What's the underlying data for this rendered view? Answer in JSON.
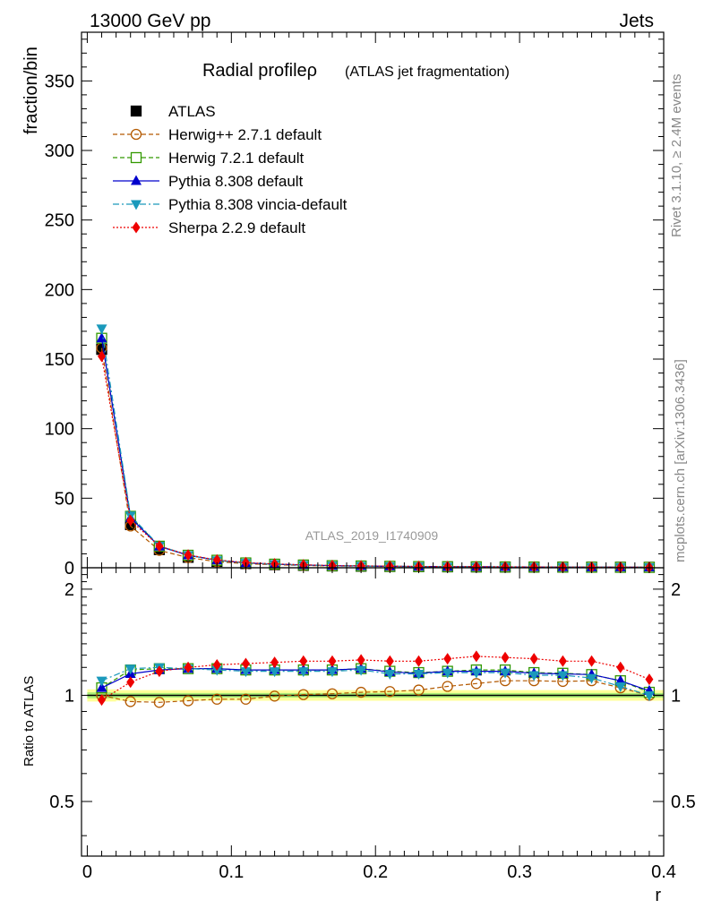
{
  "header": {
    "left": "13000 GeV pp",
    "right": "Jets"
  },
  "side_labels": {
    "top": "Rivet 3.1.10, ≥ 2.4M events",
    "bottom": "mcplots.cern.ch [arXiv:1306.3436]"
  },
  "watermark": "ATLAS_2019_I1740909",
  "chart_data": [
    {
      "panel": "main",
      "type": "line",
      "title": "Radial profileρ",
      "subtitle": "(ATLAS jet fragmentation)",
      "ylabel": "fraction/bin",
      "xlim": [
        -0.004,
        0.4
      ],
      "ylim": [
        0,
        385
      ],
      "yticks": [
        0,
        50,
        100,
        150,
        200,
        250,
        300,
        350
      ],
      "legend_position": "top-left",
      "x": [
        0.01,
        0.03,
        0.05,
        0.07,
        0.09,
        0.11,
        0.13,
        0.15,
        0.17,
        0.19,
        0.21,
        0.23,
        0.25,
        0.27,
        0.29,
        0.31,
        0.33,
        0.35,
        0.37,
        0.39
      ],
      "series": [
        {
          "name": "ATLAS",
          "color": "#000000",
          "marker": "square-filled",
          "line": "none",
          "values": [
            157,
            31,
            13,
            7.5,
            4.5,
            3.0,
            2.2,
            1.7,
            1.3,
            1.1,
            0.9,
            0.75,
            0.65,
            0.58,
            0.52,
            0.47,
            0.42,
            0.38,
            0.35,
            0.32
          ]
        },
        {
          "name": "Herwig++ 2.7.1 default",
          "color": "#b35900",
          "marker": "circle-open",
          "line": "dashed",
          "values": [
            158,
            30,
            12.5,
            7.3,
            4.4,
            2.9,
            2.2,
            1.7,
            1.3,
            1.15,
            0.93,
            0.78,
            0.69,
            0.63,
            0.58,
            0.52,
            0.46,
            0.42,
            0.37,
            0.32
          ]
        },
        {
          "name": "Herwig 7.2.1 default",
          "color": "#339900",
          "marker": "square-open",
          "line": "dashed",
          "values": [
            165,
            37,
            15.5,
            9.0,
            5.4,
            3.5,
            2.6,
            2.0,
            1.5,
            1.3,
            1.05,
            0.87,
            0.76,
            0.68,
            0.61,
            0.55,
            0.49,
            0.44,
            0.39,
            0.33
          ]
        },
        {
          "name": "Pythia 8.308 default",
          "color": "#0000cc",
          "marker": "triangle-up-filled",
          "line": "solid",
          "values": [
            165,
            36,
            15.3,
            9.0,
            5.4,
            3.5,
            2.6,
            2.0,
            1.5,
            1.3,
            1.04,
            0.87,
            0.76,
            0.68,
            0.61,
            0.54,
            0.48,
            0.43,
            0.39,
            0.33
          ]
        },
        {
          "name": "Pythia 8.308 vincia-default",
          "color": "#1a99bb",
          "marker": "triangle-down-filled",
          "line": "dashdot",
          "values": [
            172,
            37.5,
            15.8,
            9.0,
            5.3,
            3.5,
            2.6,
            2.0,
            1.5,
            1.3,
            1.03,
            0.86,
            0.76,
            0.68,
            0.61,
            0.55,
            0.48,
            0.43,
            0.37,
            0.32
          ]
        },
        {
          "name": "Sherpa 2.2.9 default",
          "color": "#ee0000",
          "marker": "diamond-filled",
          "line": "dotted",
          "values": [
            152,
            34,
            15.5,
            9.2,
            5.6,
            3.7,
            2.8,
            2.1,
            1.6,
            1.4,
            1.15,
            0.97,
            0.85,
            0.77,
            0.69,
            0.61,
            0.54,
            0.48,
            0.42,
            0.36
          ]
        }
      ]
    },
    {
      "panel": "ratio",
      "type": "line",
      "ylabel": "Ratio to ATLAS",
      "xlabel": "r",
      "xlim": [
        -0.004,
        0.4
      ],
      "ylim": [
        0.35,
        2.3
      ],
      "yscale": "log",
      "yticks": [
        0.5,
        1,
        2
      ],
      "xticks": [
        0,
        0.1,
        0.2,
        0.3,
        0.4
      ],
      "x": [
        0.01,
        0.03,
        0.05,
        0.07,
        0.09,
        0.11,
        0.13,
        0.15,
        0.17,
        0.19,
        0.21,
        0.23,
        0.25,
        0.27,
        0.29,
        0.31,
        0.33,
        0.35,
        0.37,
        0.39
      ],
      "band": {
        "color_outer": "#ffff99",
        "color_inner": "#aaee77",
        "outer_low": [
          0.96,
          0.965,
          0.965,
          0.965,
          0.965,
          0.965,
          0.965,
          0.965,
          0.965,
          0.965,
          0.965,
          0.965,
          0.965,
          0.965,
          0.965,
          0.965,
          0.965,
          0.965,
          0.965,
          0.965
        ],
        "outer_high": [
          1.04,
          1.035,
          1.035,
          1.035,
          1.035,
          1.035,
          1.035,
          1.035,
          1.035,
          1.035,
          1.035,
          1.035,
          1.035,
          1.035,
          1.035,
          1.035,
          1.035,
          1.035,
          1.035,
          1.035
        ],
        "inner_low": [
          0.98,
          0.985,
          0.985,
          0.985,
          0.985,
          0.985,
          0.985,
          0.985,
          0.985,
          0.985,
          0.985,
          0.985,
          0.985,
          0.985,
          0.985,
          0.985,
          0.985,
          0.985,
          0.985,
          0.985
        ],
        "inner_high": [
          1.02,
          1.015,
          1.015,
          1.015,
          1.015,
          1.015,
          1.015,
          1.015,
          1.015,
          1.015,
          1.015,
          1.015,
          1.015,
          1.015,
          1.015,
          1.015,
          1.015,
          1.015,
          1.015,
          1.015
        ]
      },
      "series": [
        {
          "name": "Herwig++ 2.7.1 default",
          "color": "#b35900",
          "marker": "circle-open",
          "line": "dashed",
          "values": [
            1.0,
            0.96,
            0.955,
            0.965,
            0.975,
            0.975,
            0.995,
            1.005,
            1.01,
            1.02,
            1.025,
            1.035,
            1.06,
            1.08,
            1.1,
            1.1,
            1.095,
            1.1,
            1.05,
            1.0
          ]
        },
        {
          "name": "Herwig 7.2.1 default",
          "color": "#339900",
          "marker": "square-open",
          "line": "dashed",
          "values": [
            1.05,
            1.18,
            1.19,
            1.19,
            1.19,
            1.18,
            1.18,
            1.18,
            1.18,
            1.19,
            1.17,
            1.16,
            1.17,
            1.18,
            1.18,
            1.16,
            1.155,
            1.145,
            1.1,
            1.02
          ]
        },
        {
          "name": "Pythia 8.308 default",
          "color": "#0000cc",
          "marker": "triangle-up-filled",
          "line": "solid",
          "values": [
            1.05,
            1.15,
            1.18,
            1.19,
            1.19,
            1.18,
            1.18,
            1.18,
            1.18,
            1.19,
            1.165,
            1.155,
            1.17,
            1.17,
            1.17,
            1.155,
            1.15,
            1.145,
            1.1,
            1.03
          ]
        },
        {
          "name": "Pythia 8.308 vincia-default",
          "color": "#1a99bb",
          "marker": "triangle-down-filled",
          "line": "dashdot",
          "values": [
            1.1,
            1.19,
            1.2,
            1.19,
            1.18,
            1.17,
            1.17,
            1.17,
            1.17,
            1.18,
            1.15,
            1.15,
            1.16,
            1.16,
            1.16,
            1.14,
            1.14,
            1.12,
            1.06,
            1.0
          ]
        },
        {
          "name": "Sherpa 2.2.9 default",
          "color": "#ee0000",
          "marker": "diamond-filled",
          "line": "dotted",
          "values": [
            0.97,
            1.09,
            1.17,
            1.2,
            1.22,
            1.23,
            1.24,
            1.25,
            1.25,
            1.26,
            1.25,
            1.25,
            1.27,
            1.29,
            1.28,
            1.27,
            1.25,
            1.25,
            1.2,
            1.11
          ]
        }
      ]
    }
  ]
}
